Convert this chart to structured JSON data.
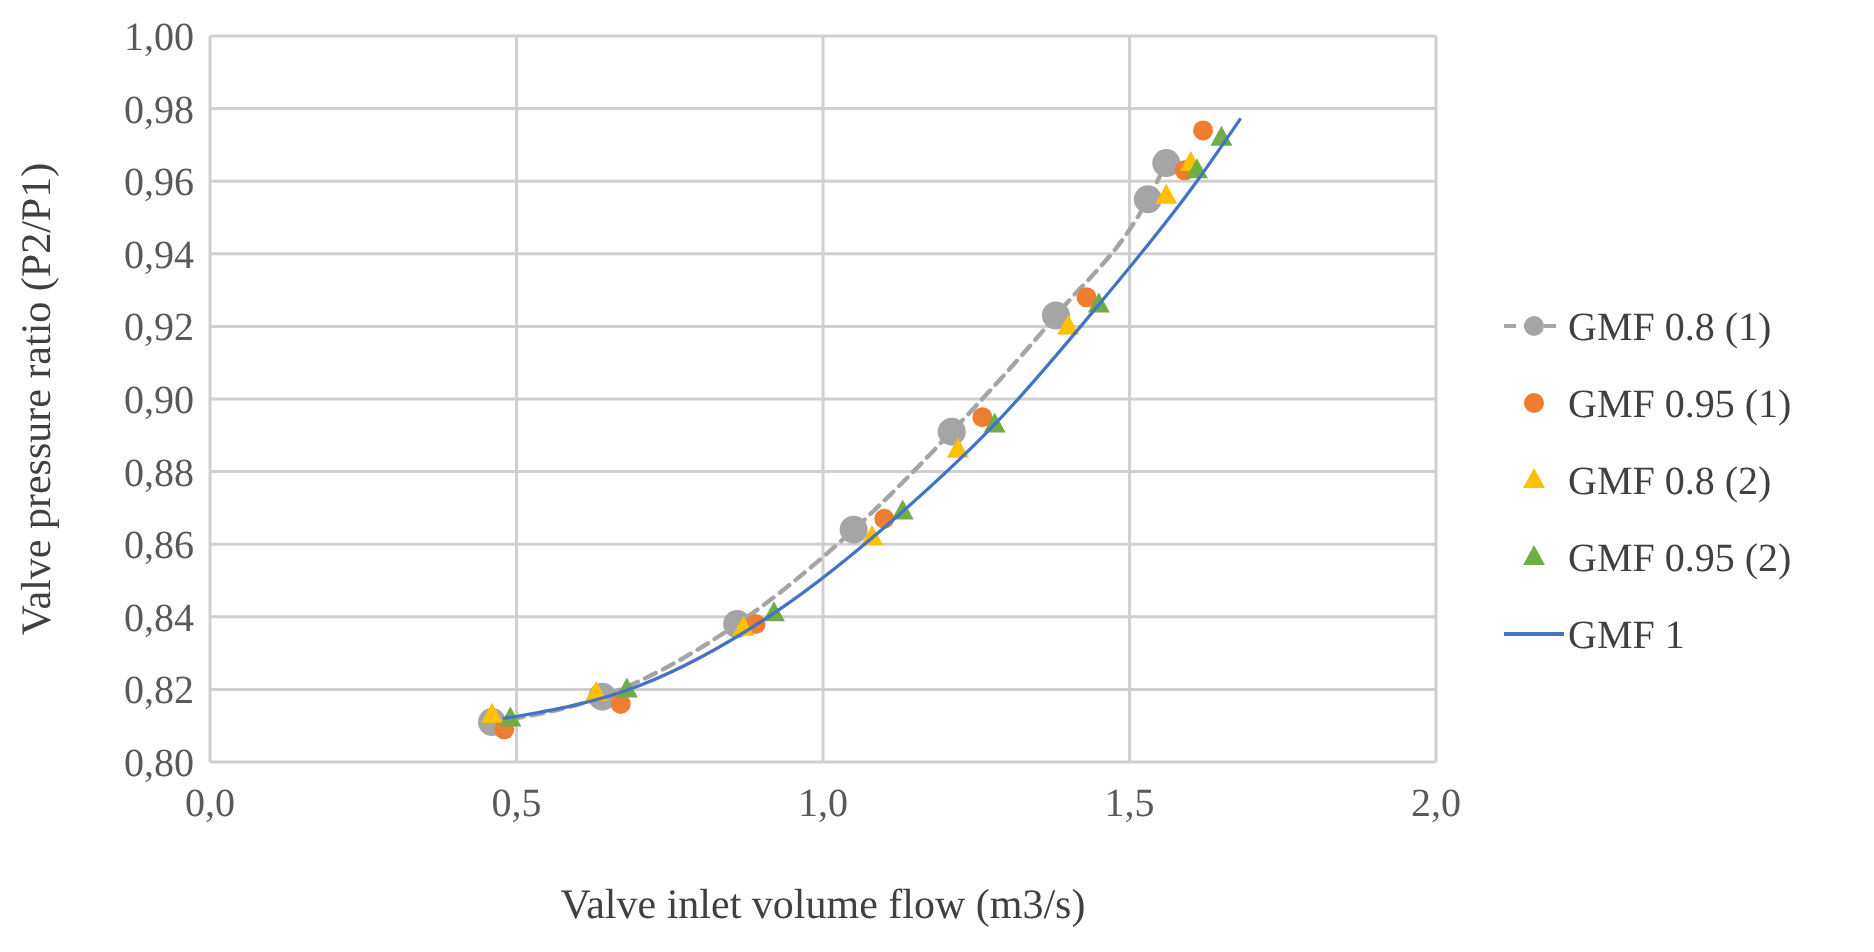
{
  "chart_data": {
    "type": "scatter",
    "xlabel": "Valve inlet volume flow (m3/s)",
    "ylabel": "Valve pressure ratio (P2/P1)",
    "xlim": [
      0,
      2
    ],
    "xticks": [
      {
        "value": 0,
        "label": "0,0"
      },
      {
        "value": 0.5,
        "label": "0,5"
      },
      {
        "value": 1,
        "label": "1,0"
      },
      {
        "value": 1.5,
        "label": "1,5"
      },
      {
        "value": 2,
        "label": "2,0"
      }
    ],
    "ylim": [
      0.8,
      1
    ],
    "yticks": [
      {
        "value": 0.8,
        "label": "0,80"
      },
      {
        "value": 0.82,
        "label": "0,82"
      },
      {
        "value": 0.84,
        "label": "0,84"
      },
      {
        "value": 0.86,
        "label": "0,86"
      },
      {
        "value": 0.88,
        "label": "0,88"
      },
      {
        "value": 0.9,
        "label": "0,90"
      },
      {
        "value": 0.92,
        "label": "0,92"
      },
      {
        "value": 0.94,
        "label": "0,94"
      },
      {
        "value": 0.96,
        "label": "0,96"
      },
      {
        "value": 0.98,
        "label": "0,98"
      },
      {
        "value": 1,
        "label": "1,00"
      }
    ],
    "grid": true,
    "legend": "right",
    "series": [
      {
        "name": "GMF 0.8 (1)",
        "type": "line",
        "color": "#a5a5a5",
        "marker": "circle",
        "line_style": "dashed",
        "x": [
          0.46,
          0.64,
          0.86,
          1.05,
          1.21,
          1.38,
          1.53,
          1.56
        ],
        "values": [
          0.811,
          0.818,
          0.838,
          0.864,
          0.891,
          0.923,
          0.955,
          0.965
        ]
      },
      {
        "name": "GMF 0.95 (1)",
        "color": "#ed7d31",
        "marker": "circle",
        "x": [
          0.48,
          0.67,
          0.89,
          1.1,
          1.26,
          1.43,
          1.59,
          1.62
        ],
        "values": [
          0.809,
          0.816,
          0.838,
          0.867,
          0.895,
          0.928,
          0.963,
          0.974
        ]
      },
      {
        "name": "GMF 0.8 (2)",
        "color": "#ffc000",
        "marker": "triangle",
        "x": [
          0.46,
          0.63,
          0.87,
          1.08,
          1.22,
          1.4,
          1.56,
          1.6
        ],
        "values": [
          0.813,
          0.819,
          0.837,
          0.862,
          0.886,
          0.92,
          0.956,
          0.965
        ]
      },
      {
        "name": "GMF 0.95 (2)",
        "color": "#70ad47",
        "marker": "triangle",
        "x": [
          0.49,
          0.68,
          0.92,
          1.13,
          1.28,
          1.45,
          1.61,
          1.65
        ],
        "values": [
          0.812,
          0.82,
          0.841,
          0.869,
          0.893,
          0.926,
          0.963,
          0.972
        ]
      },
      {
        "name": "GMF 1",
        "type": "line",
        "color": "#4472c4",
        "marker": "none",
        "line_style": "solid",
        "x": [
          0.48,
          0.7,
          0.92,
          1.13,
          1.28,
          1.45,
          1.61,
          1.68
        ],
        "values": [
          0.812,
          0.821,
          0.841,
          0.869,
          0.893,
          0.926,
          0.96,
          0.977
        ]
      }
    ]
  }
}
